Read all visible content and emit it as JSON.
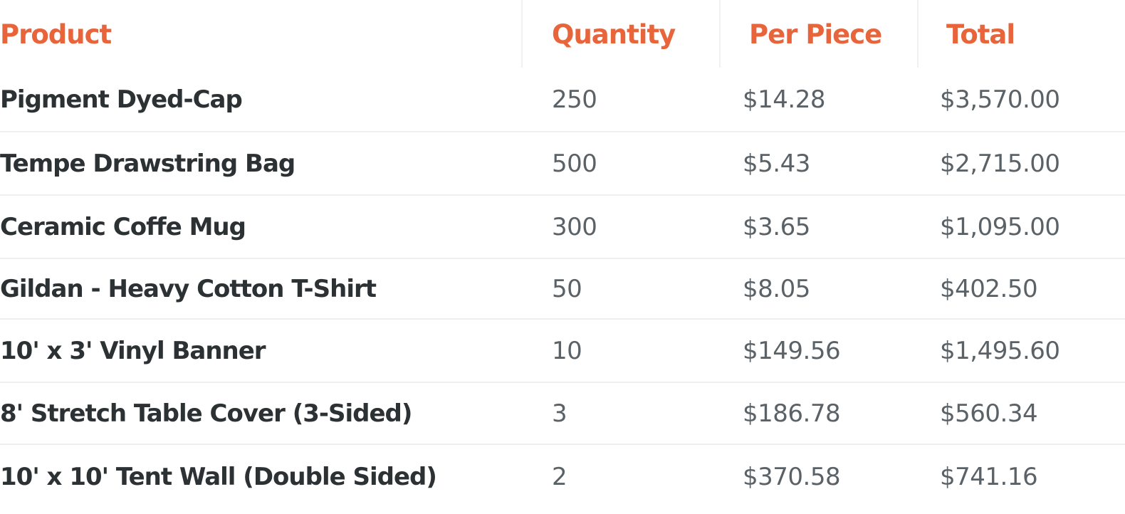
{
  "colors": {
    "header": "#e8643a",
    "product": "#2c3134",
    "value": "#5a6267"
  },
  "headers": [
    "Product",
    "Quantity",
    "Per Piece",
    "Total"
  ],
  "rows": [
    {
      "product": "Pigment Dyed-Cap",
      "quantity": "250",
      "per_piece": "$14.28",
      "total": "$3,570.00"
    },
    {
      "product": "Tempe Drawstring Bag",
      "quantity": "500",
      "per_piece": "$5.43",
      "total": "$2,715.00"
    },
    {
      "product": "Ceramic Coffe Mug",
      "quantity": "300",
      "per_piece": "$3.65",
      "total": "$1,095.00"
    },
    {
      "product": "Gildan - Heavy Cotton T-Shirt",
      "quantity": "50",
      "per_piece": "$8.05",
      "total": "$402.50"
    },
    {
      "product": "10' x 3' Vinyl Banner",
      "quantity": "10",
      "per_piece": "$149.56",
      "total": "$1,495.60"
    },
    {
      "product": "8' Stretch Table Cover (3-Sided)",
      "quantity": "3",
      "per_piece": "$186.78",
      "total": "$560.34"
    },
    {
      "product": "10' x 10' Tent Wall (Double Sided)",
      "quantity": "2",
      "per_piece": "$370.58",
      "total": "$741.16"
    }
  ]
}
